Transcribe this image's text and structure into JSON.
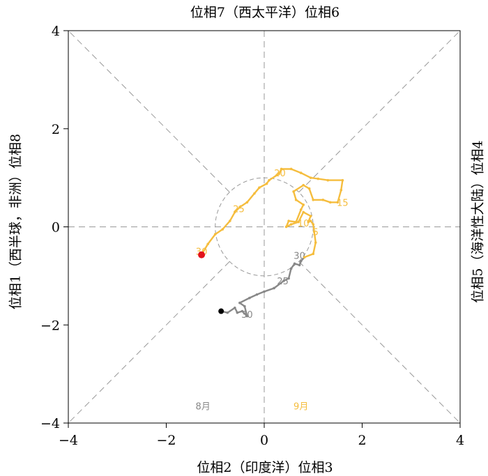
{
  "chart_data": {
    "type": "line",
    "title": "位相7（西太平洋）位相6",
    "xlabel": "位相2（印度洋）位相3",
    "ylabel_left": "位相1（西半球，非洲）位相8",
    "ylabel_right": "位相5（海洋性大陆）位相4",
    "xlim": [
      -4,
      4
    ],
    "ylim": [
      -4,
      4
    ],
    "xticks": [
      "−4",
      "−2",
      "0",
      "2",
      "4"
    ],
    "yticks": [
      "−4",
      "−2",
      "0",
      "2",
      "4"
    ],
    "colors": {
      "aug": "#888888",
      "sep": "#f5bd3e",
      "start": "#000000",
      "end": "#e2121b",
      "guide": "#999999"
    },
    "series": [
      {
        "name": "8月",
        "points": [
          [
            -0.88,
            -1.72
          ],
          [
            -0.75,
            -1.75
          ],
          [
            -0.6,
            -1.65
          ],
          [
            -0.55,
            -1.75
          ],
          [
            -0.45,
            -1.72
          ],
          [
            -0.35,
            -1.82
          ],
          [
            -0.4,
            -1.62
          ],
          [
            -0.5,
            -1.55
          ],
          [
            -0.3,
            -1.45
          ],
          [
            -0.15,
            -1.38
          ],
          [
            0.0,
            -1.32
          ],
          [
            0.2,
            -1.25
          ],
          [
            0.4,
            -1.1
          ],
          [
            0.5,
            -1.05
          ],
          [
            0.55,
            -0.85
          ],
          [
            0.62,
            -0.75
          ],
          [
            0.72,
            -0.78
          ],
          [
            0.75,
            -0.7
          ],
          [
            0.82,
            -0.62
          ]
        ],
        "labels": [
          {
            "text": "30",
            "at": [
              -0.35,
              -1.78
            ]
          },
          {
            "text": "25",
            "at": [
              0.38,
              -1.1
            ]
          },
          {
            "text": "30",
            "at": [
              0.72,
              -0.58
            ]
          }
        ]
      },
      {
        "name": "9月",
        "points": [
          [
            0.82,
            -0.62
          ],
          [
            1.0,
            -0.55
          ],
          [
            1.05,
            -0.32
          ],
          [
            1.02,
            -0.1
          ],
          [
            1.0,
            0.05
          ],
          [
            0.95,
            0.12
          ],
          [
            0.9,
            0.1
          ],
          [
            0.95,
            0.22
          ],
          [
            0.8,
            0.3
          ],
          [
            0.7,
            0.1
          ],
          [
            0.55,
            0.05
          ],
          [
            0.45,
            0.0
          ],
          [
            0.5,
            0.12
          ],
          [
            0.65,
            0.1
          ],
          [
            0.75,
            0.35
          ],
          [
            0.8,
            0.45
          ],
          [
            0.65,
            0.55
          ],
          [
            0.6,
            0.72
          ],
          [
            0.8,
            0.85
          ],
          [
            0.92,
            0.78
          ],
          [
            1.0,
            0.55
          ],
          [
            1.2,
            0.55
          ],
          [
            1.35,
            0.5
          ],
          [
            1.5,
            0.5
          ],
          [
            1.57,
            0.75
          ],
          [
            1.6,
            0.95
          ],
          [
            1.3,
            0.95
          ],
          [
            1.1,
            0.98
          ],
          [
            0.95,
            1.0
          ],
          [
            0.75,
            1.1
          ],
          [
            0.55,
            1.18
          ],
          [
            0.35,
            1.18
          ],
          [
            0.3,
            1.08
          ],
          [
            0.1,
            0.95
          ],
          [
            0.05,
            0.88
          ],
          [
            -0.1,
            0.8
          ],
          [
            -0.2,
            0.68
          ],
          [
            -0.35,
            0.5
          ],
          [
            -0.5,
            0.4
          ],
          [
            -0.6,
            0.3
          ],
          [
            -0.7,
            0.12
          ],
          [
            -0.85,
            -0.05
          ],
          [
            -1.0,
            -0.15
          ],
          [
            -1.15,
            -0.35
          ],
          [
            -1.28,
            -0.57
          ]
        ],
        "labels": [
          {
            "text": "5",
            "at": [
              1.05,
              -0.1
            ]
          },
          {
            "text": "10",
            "at": [
              0.8,
              0.08
            ]
          },
          {
            "text": "15",
            "at": [
              1.6,
              0.5
            ]
          },
          {
            "text": "20",
            "at": [
              0.32,
              1.1
            ]
          },
          {
            "text": "25",
            "at": [
              -0.52,
              0.37
            ]
          },
          {
            "text": "30",
            "at": [
              -1.28,
              -0.5
            ]
          }
        ]
      }
    ],
    "month_labels": [
      {
        "text": "8月",
        "at": [
          -1.25,
          -3.65
        ],
        "series": 0
      },
      {
        "text": "9月",
        "at": [
          0.75,
          -3.65
        ],
        "series": 1
      }
    ],
    "start_point": [
      -0.88,
      -1.72
    ],
    "end_point": [
      -1.28,
      -0.57
    ],
    "unit_circle_radius": 1,
    "grid": false
  }
}
